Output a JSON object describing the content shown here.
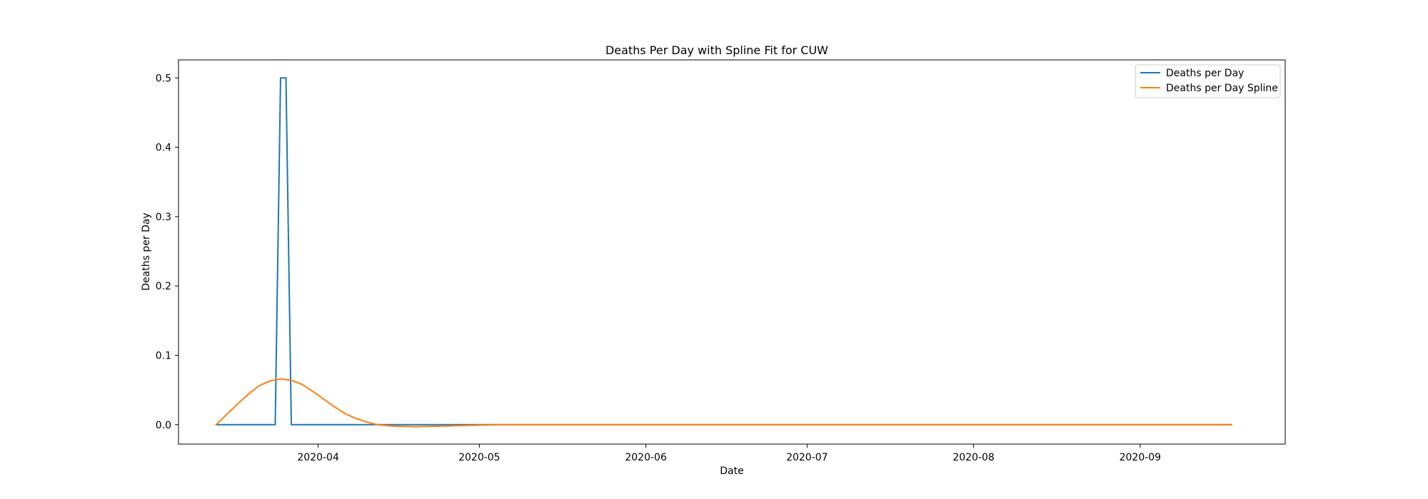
{
  "chart_data": {
    "type": "line",
    "title": "Deaths Per Day with Spline Fit for CUW",
    "xlabel": "Date",
    "ylabel": "Deaths per Day",
    "xlim": [
      "2020-03-06",
      "2020-09-28"
    ],
    "ylim": [
      -0.028,
      0.526
    ],
    "x_ticks": [
      "2020-04-01",
      "2020-05-01",
      "2020-06-01",
      "2020-07-01",
      "2020-08-01",
      "2020-09-01"
    ],
    "x_tick_labels": [
      "2020-04",
      "2020-05",
      "2020-06",
      "2020-07",
      "2020-08",
      "2020-09"
    ],
    "y_ticks": [
      0.0,
      0.1,
      0.2,
      0.3,
      0.4,
      0.5
    ],
    "y_tick_labels": [
      "0.0",
      "0.1",
      "0.2",
      "0.3",
      "0.4",
      "0.5"
    ],
    "grid": false,
    "legend_position": "top-right",
    "series": [
      {
        "name": "Deaths per Day",
        "color": "#1f77b4",
        "points": [
          [
            "2020-03-13",
            0.0
          ],
          [
            "2020-03-24",
            0.0
          ],
          [
            "2020-03-25",
            0.5
          ],
          [
            "2020-03-26",
            0.5
          ],
          [
            "2020-03-27",
            0.0
          ],
          [
            "2020-09-18",
            0.0
          ]
        ]
      },
      {
        "name": "Deaths per Day Spline",
        "color": "#ff7f0e",
        "points": [
          [
            "2020-03-13",
            0.0
          ],
          [
            "2020-03-15",
            0.015
          ],
          [
            "2020-03-17",
            0.03
          ],
          [
            "2020-03-19",
            0.044
          ],
          [
            "2020-03-21",
            0.056
          ],
          [
            "2020-03-23",
            0.063
          ],
          [
            "2020-03-25",
            0.066
          ],
          [
            "2020-03-27",
            0.064
          ],
          [
            "2020-03-29",
            0.058
          ],
          [
            "2020-03-31",
            0.048
          ],
          [
            "2020-04-02",
            0.037
          ],
          [
            "2020-04-04",
            0.026
          ],
          [
            "2020-04-06",
            0.016
          ],
          [
            "2020-04-08",
            0.009
          ],
          [
            "2020-04-10",
            0.004
          ],
          [
            "2020-04-12",
            0.0
          ],
          [
            "2020-04-15",
            -0.002
          ],
          [
            "2020-04-19",
            -0.003
          ],
          [
            "2020-04-24",
            -0.002
          ],
          [
            "2020-04-29",
            -0.001
          ],
          [
            "2020-05-05",
            0.0
          ],
          [
            "2020-09-18",
            0.0
          ]
        ]
      }
    ]
  }
}
